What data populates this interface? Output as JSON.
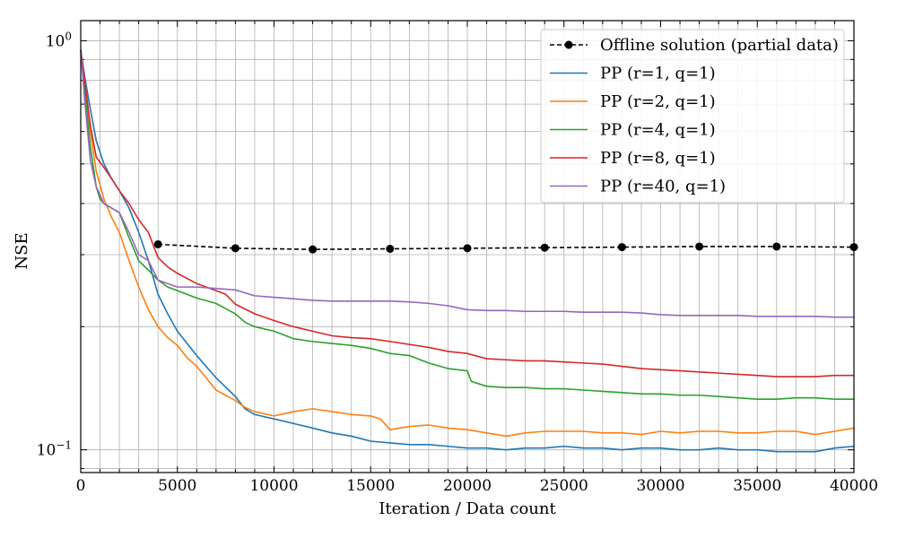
{
  "chart_data": {
    "type": "line",
    "xlabel": "Iteration / Data count",
    "ylabel": "NSE",
    "xlim": [
      0,
      40000
    ],
    "ylim": [
      0.088,
      1.12
    ],
    "yscale": "log",
    "grid": true,
    "legend_position": "top-right",
    "x_ticks": [
      0,
      5000,
      10000,
      15000,
      20000,
      25000,
      30000,
      35000,
      40000
    ],
    "x_tick_labels": [
      "0",
      "5000",
      "10000",
      "15000",
      "20000",
      "25000",
      "30000",
      "35000",
      "40000"
    ],
    "y_major_ticks": [
      0.1,
      1.0
    ],
    "y_tick_labels": [
      "10−1",
      "10⁰"
    ],
    "y_tick_label_parts": [
      {
        "base": "10",
        "exp": "−1"
      },
      {
        "base": "10",
        "exp": "0"
      }
    ],
    "series": [
      {
        "name": "Offline solution (partial data)",
        "color": "#000000",
        "style": "dashed",
        "marker": "circle",
        "x": [
          4000,
          8000,
          12000,
          16000,
          20000,
          24000,
          28000,
          32000,
          36000,
          40000
        ],
        "y": [
          0.318,
          0.311,
          0.309,
          0.31,
          0.311,
          0.312,
          0.313,
          0.314,
          0.314,
          0.313
        ]
      },
      {
        "name": "PP (r=1, q=1)",
        "color": "#1f77b4",
        "style": "solid",
        "x": [
          0,
          200,
          500,
          800,
          1200,
          1600,
          2000,
          2500,
          3000,
          3500,
          4000,
          4500,
          5000,
          6000,
          7000,
          8000,
          8500,
          9000,
          10000,
          11000,
          12000,
          13000,
          14000,
          15000,
          16000,
          17000,
          18000,
          19000,
          20000,
          21000,
          22000,
          23000,
          24000,
          25000,
          26000,
          27000,
          28000,
          29000,
          30000,
          31000,
          32000,
          33000,
          34000,
          35000,
          36000,
          37000,
          38000,
          39000,
          40000
        ],
        "y": [
          0.95,
          0.82,
          0.68,
          0.57,
          0.5,
          0.46,
          0.43,
          0.39,
          0.34,
          0.29,
          0.24,
          0.215,
          0.195,
          0.17,
          0.15,
          0.135,
          0.126,
          0.122,
          0.119,
          0.116,
          0.113,
          0.11,
          0.108,
          0.105,
          0.104,
          0.103,
          0.103,
          0.102,
          0.101,
          0.101,
          0.1,
          0.101,
          0.101,
          0.102,
          0.101,
          0.101,
          0.1,
          0.101,
          0.101,
          0.1,
          0.1,
          0.101,
          0.1,
          0.1,
          0.099,
          0.099,
          0.099,
          0.101,
          0.102
        ]
      },
      {
        "name": "PP (r=2, q=1)",
        "color": "#ff7f0e",
        "style": "solid",
        "x": [
          0,
          200,
          500,
          800,
          1200,
          1600,
          2000,
          2500,
          3000,
          3500,
          4000,
          4500,
          5000,
          5500,
          6000,
          7000,
          8000,
          8500,
          9000,
          10000,
          11000,
          12000,
          13000,
          14000,
          15000,
          15500,
          16000,
          17000,
          18000,
          19000,
          20000,
          21000,
          22000,
          23000,
          24000,
          25000,
          26000,
          27000,
          28000,
          29000,
          30000,
          31000,
          32000,
          33000,
          34000,
          35000,
          36000,
          37000,
          38000,
          39000,
          40000
        ],
        "y": [
          0.95,
          0.78,
          0.6,
          0.48,
          0.41,
          0.37,
          0.34,
          0.29,
          0.25,
          0.22,
          0.2,
          0.188,
          0.18,
          0.168,
          0.16,
          0.14,
          0.132,
          0.127,
          0.124,
          0.121,
          0.124,
          0.126,
          0.124,
          0.122,
          0.121,
          0.119,
          0.112,
          0.114,
          0.115,
          0.113,
          0.112,
          0.11,
          0.108,
          0.11,
          0.111,
          0.111,
          0.111,
          0.11,
          0.11,
          0.109,
          0.111,
          0.11,
          0.111,
          0.111,
          0.11,
          0.11,
          0.111,
          0.111,
          0.109,
          0.111,
          0.113
        ]
      },
      {
        "name": "PP (r=4, q=1)",
        "color": "#2ca02c",
        "style": "solid",
        "x": [
          0,
          200,
          500,
          800,
          1000,
          1200,
          1600,
          2000,
          2500,
          3000,
          3500,
          4000,
          4500,
          5000,
          6000,
          7000,
          8000,
          8500,
          9000,
          10000,
          11000,
          12000,
          13000,
          14000,
          15000,
          16000,
          17000,
          18000,
          19000,
          20000,
          20200,
          21000,
          22000,
          23000,
          24000,
          25000,
          26000,
          27000,
          28000,
          29000,
          30000,
          31000,
          32000,
          33000,
          34000,
          35000,
          36000,
          37000,
          38000,
          39000,
          40000
        ],
        "y": [
          0.95,
          0.76,
          0.55,
          0.44,
          0.41,
          0.4,
          0.39,
          0.38,
          0.33,
          0.29,
          0.275,
          0.26,
          0.25,
          0.245,
          0.235,
          0.228,
          0.215,
          0.205,
          0.2,
          0.195,
          0.187,
          0.184,
          0.182,
          0.18,
          0.177,
          0.172,
          0.17,
          0.163,
          0.158,
          0.156,
          0.147,
          0.143,
          0.142,
          0.142,
          0.141,
          0.141,
          0.14,
          0.139,
          0.138,
          0.137,
          0.137,
          0.136,
          0.136,
          0.135,
          0.134,
          0.133,
          0.133,
          0.134,
          0.134,
          0.133,
          0.133
        ]
      },
      {
        "name": "PP (r=8, q=1)",
        "color": "#d62728",
        "style": "solid",
        "x": [
          0,
          200,
          500,
          800,
          1200,
          1600,
          2000,
          2500,
          3000,
          3500,
          4000,
          4500,
          5000,
          6000,
          7000,
          7500,
          8000,
          9000,
          10000,
          11000,
          12000,
          13000,
          14000,
          15000,
          16000,
          17000,
          18000,
          19000,
          20000,
          21000,
          22000,
          23000,
          24000,
          25000,
          26000,
          27000,
          28000,
          29000,
          30000,
          31000,
          32000,
          33000,
          34000,
          35000,
          36000,
          37000,
          38000,
          39000,
          40000
        ],
        "y": [
          0.95,
          0.8,
          0.62,
          0.52,
          0.49,
          0.46,
          0.43,
          0.4,
          0.365,
          0.34,
          0.295,
          0.28,
          0.27,
          0.255,
          0.245,
          0.24,
          0.227,
          0.215,
          0.207,
          0.2,
          0.195,
          0.19,
          0.188,
          0.187,
          0.184,
          0.181,
          0.178,
          0.174,
          0.172,
          0.167,
          0.166,
          0.165,
          0.165,
          0.164,
          0.163,
          0.162,
          0.16,
          0.158,
          0.157,
          0.156,
          0.155,
          0.154,
          0.153,
          0.152,
          0.151,
          0.151,
          0.151,
          0.152,
          0.152
        ]
      },
      {
        "name": "PP (r=40, q=1)",
        "color": "#9467bd",
        "style": "solid",
        "x": [
          0,
          200,
          500,
          800,
          1200,
          1600,
          2000,
          2500,
          3000,
          3500,
          4000,
          4500,
          5000,
          6000,
          7000,
          8000,
          9000,
          10000,
          11000,
          12000,
          13000,
          14000,
          15000,
          16000,
          17000,
          18000,
          19000,
          20000,
          21000,
          22000,
          23000,
          24000,
          25000,
          26000,
          27000,
          28000,
          29000,
          30000,
          31000,
          32000,
          33000,
          34000,
          35000,
          36000,
          37000,
          38000,
          39000,
          40000
        ],
        "y": [
          0.95,
          0.72,
          0.51,
          0.44,
          0.4,
          0.39,
          0.38,
          0.34,
          0.3,
          0.29,
          0.26,
          0.255,
          0.25,
          0.25,
          0.248,
          0.246,
          0.238,
          0.236,
          0.234,
          0.232,
          0.231,
          0.231,
          0.231,
          0.231,
          0.23,
          0.228,
          0.225,
          0.22,
          0.219,
          0.219,
          0.218,
          0.218,
          0.218,
          0.217,
          0.217,
          0.217,
          0.216,
          0.214,
          0.213,
          0.213,
          0.213,
          0.213,
          0.212,
          0.212,
          0.212,
          0.212,
          0.211,
          0.211
        ]
      }
    ]
  }
}
